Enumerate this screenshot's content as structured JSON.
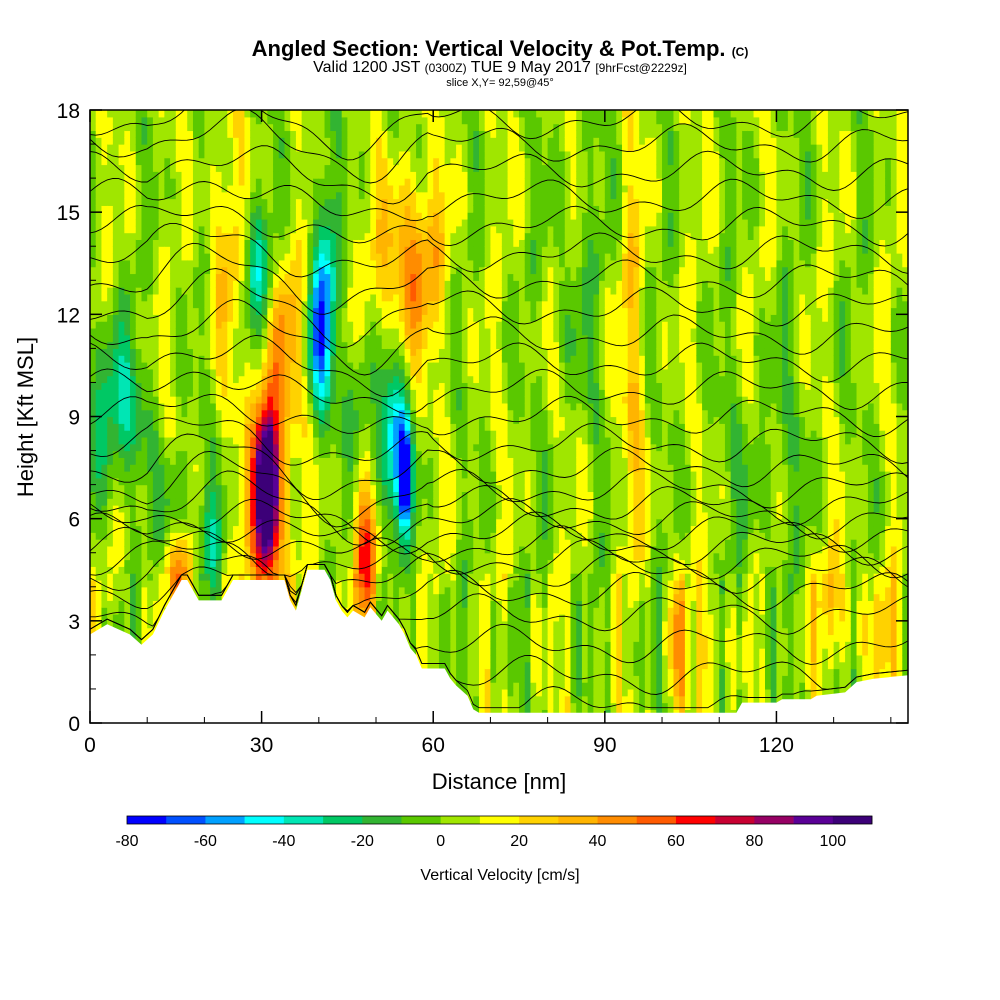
{
  "header": {
    "title_main": "Angled Section: Vertical Velocity & Pot.Temp.",
    "title_unit": "(C)",
    "valid_a": "Valid 1200 JST",
    "valid_b": "(0300Z)",
    "valid_c": "TUE 9 May 2017",
    "valid_d": "[9hrFcst@2229z]",
    "slice": "slice X,Y= 92,59@45°"
  },
  "chart_data": {
    "type": "heatmap",
    "xlabel": "Distance [nm]",
    "ylabel": "Height [Kft MSL]",
    "xlim": [
      0,
      143
    ],
    "ylim": [
      0,
      18
    ],
    "x_ticks": [
      0,
      30,
      60,
      90,
      120
    ],
    "y_ticks": [
      0,
      3,
      6,
      9,
      12,
      15,
      18
    ],
    "colorbar": {
      "label": "Vertical Velocity [cm/s]",
      "ticks": [
        -80,
        -60,
        -40,
        -20,
        0,
        20,
        40,
        60,
        80,
        100
      ],
      "min": -80,
      "max": 110,
      "step": 10,
      "colors": [
        "#0000ff",
        "#0050ff",
        "#00a0ff",
        "#00ffff",
        "#00e6b4",
        "#00c864",
        "#32b432",
        "#5ac800",
        "#a0e600",
        "#ffff00",
        "#ffd200",
        "#ffb400",
        "#ff8c00",
        "#ff5a00",
        "#ff0000",
        "#c80032",
        "#960064",
        "#5a0096",
        "#3c0078"
      ]
    },
    "velocity_features": [
      {
        "x": 31,
        "y": 7.0,
        "sx": 1.2,
        "sy": 1.6,
        "value": 105
      },
      {
        "x": 31,
        "y": 6.5,
        "sx": 2.6,
        "sy": 2.6,
        "value": 55
      },
      {
        "x": 48,
        "y": 5.0,
        "sx": 1.5,
        "sy": 1.6,
        "value": 55
      },
      {
        "x": 16,
        "y": 4.4,
        "sx": 1.8,
        "sy": 0.9,
        "value": 50
      },
      {
        "x": 56,
        "y": 13.5,
        "sx": 4.0,
        "sy": 1.8,
        "value": 42
      },
      {
        "x": 24,
        "y": 14.0,
        "sx": 2.4,
        "sy": 2.2,
        "value": 25
      },
      {
        "x": 34,
        "y": 11.5,
        "sx": 2.2,
        "sy": 2.0,
        "value": 28
      },
      {
        "x": 95,
        "y": 10.5,
        "sx": 1.5,
        "sy": 4.0,
        "value": 22
      },
      {
        "x": 103,
        "y": 2.4,
        "sx": 1.0,
        "sy": 1.6,
        "value": 35
      },
      {
        "x": 108,
        "y": 2.2,
        "sx": 1.0,
        "sy": 1.4,
        "value": 28
      },
      {
        "x": 130,
        "y": 3.4,
        "sx": 3.0,
        "sy": 1.2,
        "value": 22
      },
      {
        "x": 140,
        "y": 2.5,
        "sx": 2.0,
        "sy": 1.2,
        "value": 24
      },
      {
        "x": 4,
        "y": 9.2,
        "sx": 3.5,
        "sy": 1.6,
        "value": -38
      },
      {
        "x": 29,
        "y": 13.5,
        "sx": 2.0,
        "sy": 1.4,
        "value": -40
      },
      {
        "x": 41,
        "y": 13.0,
        "sx": 1.4,
        "sy": 2.2,
        "value": -45
      },
      {
        "x": 40,
        "y": 11.2,
        "sx": 1.6,
        "sy": 1.4,
        "value": -38
      },
      {
        "x": 53,
        "y": 8.0,
        "sx": 2.0,
        "sy": 1.6,
        "value": -55
      },
      {
        "x": 55,
        "y": 7.2,
        "sx": 0.8,
        "sy": 1.0,
        "value": -72
      },
      {
        "x": 47,
        "y": 9.5,
        "sx": 1.6,
        "sy": 1.2,
        "value": -25
      },
      {
        "x": 15,
        "y": 6.0,
        "sx": 2.0,
        "sy": 1.5,
        "value": -22
      },
      {
        "x": 21,
        "y": 5.2,
        "sx": 1.6,
        "sy": 1.2,
        "value": -26
      },
      {
        "x": 85,
        "y": 13.0,
        "sx": 3.0,
        "sy": 3.0,
        "value": -10
      },
      {
        "x": 118,
        "y": 7.5,
        "sx": 5.0,
        "sy": 2.5,
        "value": -10
      }
    ],
    "terrain_heights": [
      [
        0,
        2.6
      ],
      [
        3,
        2.9
      ],
      [
        7,
        2.6
      ],
      [
        9,
        2.3
      ],
      [
        11,
        2.6
      ],
      [
        13,
        3.3
      ],
      [
        14,
        3.6
      ],
      [
        15,
        3.9
      ],
      [
        16,
        4.2
      ],
      [
        17,
        4.2
      ],
      [
        18,
        3.9
      ],
      [
        19,
        3.6
      ],
      [
        23,
        3.6
      ],
      [
        24,
        3.9
      ],
      [
        25,
        4.2
      ],
      [
        34,
        4.2
      ],
      [
        35,
        3.6
      ],
      [
        36,
        3.3
      ],
      [
        37,
        3.9
      ],
      [
        38,
        4.5
      ],
      [
        41,
        4.5
      ],
      [
        42,
        4.2
      ],
      [
        43,
        3.6
      ],
      [
        44,
        3.3
      ],
      [
        45,
        3.1
      ],
      [
        46,
        3.3
      ],
      [
        48,
        3.1
      ],
      [
        49,
        3.4
      ],
      [
        50,
        3.2
      ],
      [
        51,
        3.0
      ],
      [
        52,
        3.3
      ],
      [
        53,
        3.1
      ],
      [
        54,
        2.9
      ],
      [
        55,
        2.6
      ],
      [
        56,
        2.2
      ],
      [
        57,
        2.0
      ],
      [
        58,
        1.6
      ],
      [
        62,
        1.6
      ],
      [
        63,
        1.3
      ],
      [
        64,
        1.1
      ],
      [
        66,
        0.8
      ],
      [
        67,
        0.4
      ],
      [
        68,
        0.3
      ],
      [
        75,
        0.3
      ],
      [
        113,
        0.3
      ],
      [
        114,
        0.6
      ],
      [
        120,
        0.6
      ],
      [
        121,
        0.7
      ],
      [
        126,
        0.7
      ],
      [
        127,
        0.8
      ],
      [
        132,
        0.9
      ],
      [
        134,
        1.2
      ],
      [
        137,
        1.3
      ],
      [
        143,
        1.4
      ]
    ],
    "isentropes": [
      {
        "level": 0.5,
        "label": "",
        "label_x": 0
      },
      {
        "level": 1.4,
        "label": "",
        "label_x": 0
      },
      {
        "level": 2.3,
        "label": "",
        "label_x": 0
      },
      {
        "level": 3.2,
        "label": "",
        "label_x": 0
      },
      {
        "level": 3.9,
        "label": "",
        "label_x": 0
      },
      {
        "level": 4.4,
        "label": "",
        "label_x": 0
      },
      {
        "level": 4.8,
        "label": "",
        "label_x": 0
      },
      {
        "level": 5.2,
        "label": "",
        "label_x": 0
      },
      {
        "level": 5.6,
        "label": "",
        "label_x": 0
      },
      {
        "level": 6.0,
        "label": "",
        "label_x": 0
      },
      {
        "level": 6.4,
        "label": "",
        "label_x": 0
      },
      {
        "level": 6.9,
        "label": "",
        "label_x": 0
      },
      {
        "level": 7.5,
        "label": "",
        "label_x": 0
      },
      {
        "level": 8.2,
        "label": "",
        "label_x": 0
      },
      {
        "level": 9.0,
        "label": "",
        "label_x": 0
      },
      {
        "level": 9.8,
        "label": "",
        "label_x": 0
      },
      {
        "level": 10.6,
        "label": "",
        "label_x": 0
      },
      {
        "level": 11.4,
        "label": "",
        "label_x": 0
      },
      {
        "level": 12.2,
        "label": "",
        "label_x": 0
      },
      {
        "level": 13.0,
        "label": "",
        "label_x": 0
      },
      {
        "level": 13.8,
        "label": "",
        "label_x": 0
      },
      {
        "level": 14.6,
        "label": "",
        "label_x": 0
      },
      {
        "level": 15.4,
        "label": "",
        "label_x": 0
      },
      {
        "level": 16.2,
        "label": "",
        "label_x": 0
      },
      {
        "level": 17.0,
        "label": "",
        "label_x": 0
      },
      {
        "level": 17.7,
        "label": "",
        "label_x": 0
      }
    ]
  }
}
